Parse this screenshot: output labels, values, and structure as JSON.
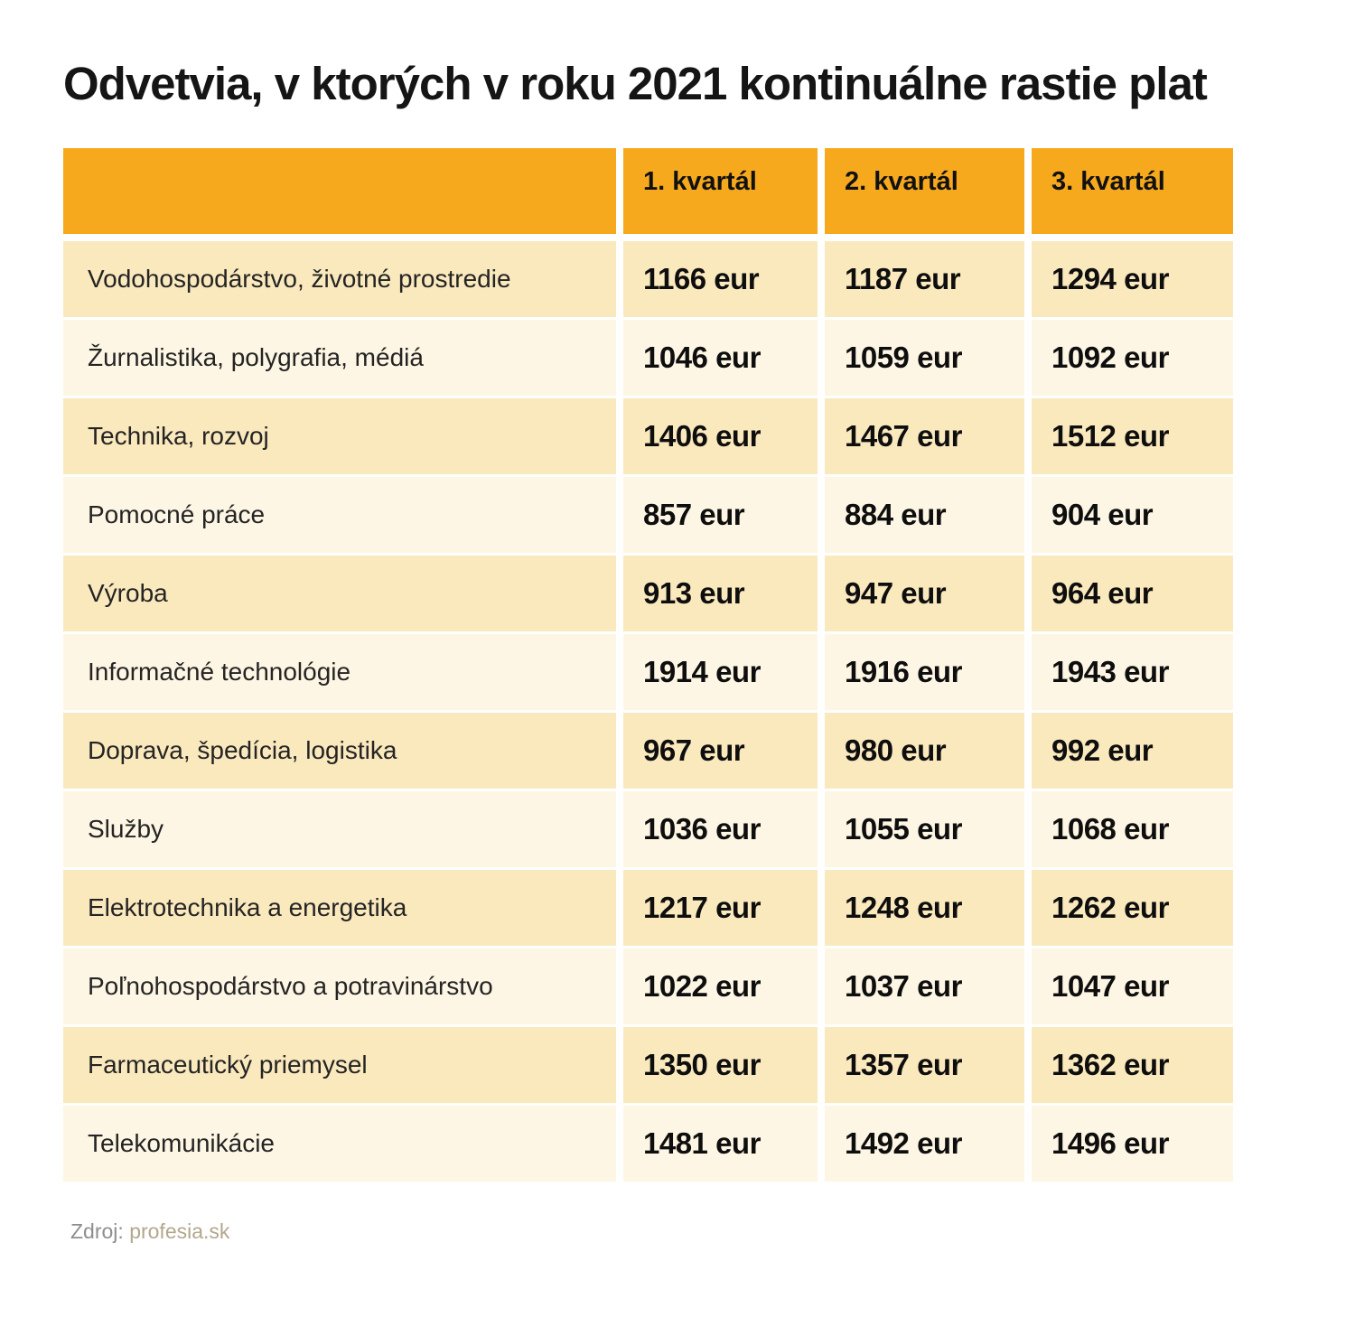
{
  "title": "Odvetvia, v ktorých v roku 2021 kontinuálne rastie plat",
  "source": {
    "label": "Zdroj:",
    "name": "profesia.sk"
  },
  "colors": {
    "header_bg": "#F7A91E",
    "row_dark_bg": "#FBE9BE",
    "row_light_bg": "#FEF6E4",
    "title_text": "#151515",
    "value_text": "#0e0e0e",
    "source_label_text": "#8E8E8E",
    "source_name_text": "#B3A78C"
  },
  "chart_data": {
    "type": "table",
    "title": "Odvetvia, v ktorých v roku 2021 kontinuálne rastie plat",
    "columns": [
      "1. kvartál",
      "2. kvartál",
      "3. kvartál"
    ],
    "unit": "eur",
    "rows": [
      {
        "label": "Vodohospodárstvo, životné prostredie",
        "values": [
          1166,
          1187,
          1294
        ]
      },
      {
        "label": "Žurnalistika, polygrafia, médiá",
        "values": [
          1046,
          1059,
          1092
        ]
      },
      {
        "label": "Technika, rozvoj",
        "values": [
          1406,
          1467,
          1512
        ]
      },
      {
        "label": "Pomocné práce",
        "values": [
          857,
          884,
          904
        ]
      },
      {
        "label": "Výroba",
        "values": [
          913,
          947,
          964
        ]
      },
      {
        "label": "Informačné technológie",
        "values": [
          1914,
          1916,
          1943
        ]
      },
      {
        "label": "Doprava, špedícia, logistika",
        "values": [
          967,
          980,
          992
        ]
      },
      {
        "label": "Služby",
        "values": [
          1036,
          1055,
          1068
        ]
      },
      {
        "label": "Elektrotechnika a energetika",
        "values": [
          1217,
          1248,
          1262
        ]
      },
      {
        "label": "Poľnohospodárstvo a potravinárstvo",
        "values": [
          1022,
          1037,
          1047
        ]
      },
      {
        "label": "Farmaceutický priemysel",
        "values": [
          1350,
          1357,
          1362
        ]
      },
      {
        "label": "Telekomunikácie",
        "values": [
          1481,
          1492,
          1496
        ]
      }
    ]
  }
}
